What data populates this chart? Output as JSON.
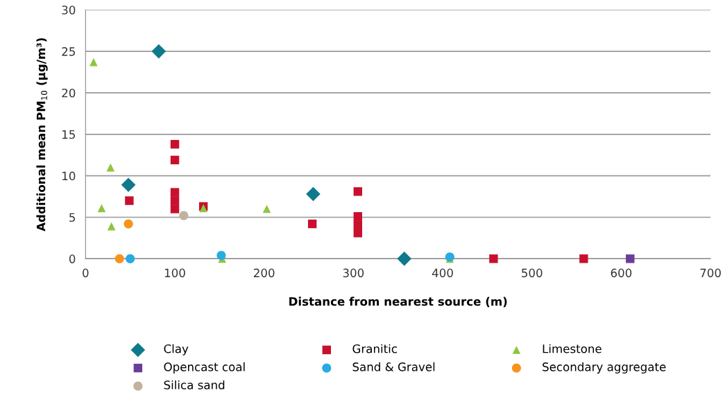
{
  "chart_data": {
    "type": "scatter",
    "xlabel": "Distance from nearest source (m)",
    "ylabel": "Additional mean PM$_{10}$ (µg/m³)",
    "xlim": [
      0,
      700
    ],
    "xticks": [
      0,
      100,
      200,
      300,
      400,
      500,
      600,
      700
    ],
    "ylim": [
      0,
      30
    ],
    "yticks": [
      0,
      5,
      10,
      15,
      20,
      25,
      30
    ],
    "grid": "y",
    "legend": "bottom",
    "series": [
      {
        "name": "Clay",
        "color": "#0e7a8c",
        "marker": "diamond",
        "x": [
          82,
          48,
          255,
          357
        ],
        "values": [
          25,
          8.9,
          7.8,
          0
        ]
      },
      {
        "name": "Granitic",
        "color": "#c8102e",
        "marker": "square",
        "x": [
          100,
          100,
          100,
          100,
          100,
          49,
          132,
          254,
          305,
          305,
          305,
          305,
          457,
          558
        ],
        "values": [
          13.8,
          11.9,
          8,
          7,
          6,
          7.0,
          6.3,
          4.2,
          8.1,
          5.1,
          4.1,
          3.1,
          0,
          0
        ]
      },
      {
        "name": "Limestone",
        "color": "#8dc63f",
        "marker": "triangle",
        "x": [
          9,
          28,
          18,
          29,
          132,
          153,
          203,
          408
        ],
        "values": [
          23.7,
          11.0,
          6.1,
          3.9,
          6.1,
          0,
          6.0,
          0
        ]
      },
      {
        "name": "Opencast coal",
        "color": "#6a3d9a",
        "marker": "square",
        "x": [
          610
        ],
        "values": [
          0
        ]
      },
      {
        "name": "Sand & Gravel",
        "color": "#29abe2",
        "marker": "circle",
        "x": [
          50,
          152,
          408
        ],
        "values": [
          0,
          0.4,
          0.2
        ]
      },
      {
        "name": "Secondary aggregate",
        "color": "#f7941d",
        "marker": "circle",
        "x": [
          38,
          48
        ],
        "values": [
          0,
          4.2
        ]
      },
      {
        "name": "Silica sand",
        "color": "#bfb39e",
        "marker": "circle",
        "x": [
          110
        ],
        "values": [
          5.2
        ]
      }
    ]
  }
}
